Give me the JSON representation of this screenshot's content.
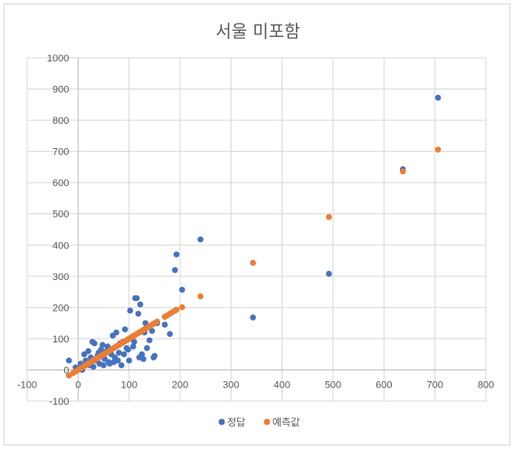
{
  "chart_data": {
    "type": "scatter",
    "title": "서울 미포함",
    "xlabel": "",
    "ylabel": "",
    "xlim": [
      -100,
      800
    ],
    "ylim": [
      -100,
      1000
    ],
    "x_ticks": [
      -100,
      0,
      100,
      200,
      300,
      400,
      500,
      600,
      700,
      800
    ],
    "y_ticks": [
      -100,
      0,
      100,
      200,
      300,
      400,
      500,
      600,
      700,
      800,
      900,
      1000
    ],
    "grid": true,
    "legend_position": "bottom",
    "colors": {
      "정답": "#4472c4",
      "예측값": "#ed7d31",
      "grid": "#d9d9d9"
    },
    "series": [
      {
        "name": "정답",
        "points": [
          [
            -18,
            30
          ],
          [
            -5,
            8
          ],
          [
            0,
            5
          ],
          [
            5,
            20
          ],
          [
            8,
            0
          ],
          [
            12,
            50
          ],
          [
            15,
            30
          ],
          [
            18,
            25
          ],
          [
            20,
            60
          ],
          [
            22,
            15
          ],
          [
            25,
            40
          ],
          [
            28,
            90
          ],
          [
            30,
            10
          ],
          [
            32,
            85
          ],
          [
            35,
            30
          ],
          [
            38,
            45
          ],
          [
            40,
            55
          ],
          [
            42,
            20
          ],
          [
            45,
            65
          ],
          [
            48,
            80
          ],
          [
            50,
            15
          ],
          [
            52,
            35
          ],
          [
            55,
            60
          ],
          [
            58,
            75
          ],
          [
            60,
            25
          ],
          [
            62,
            20
          ],
          [
            65,
            50
          ],
          [
            68,
            110
          ],
          [
            70,
            25
          ],
          [
            72,
            40
          ],
          [
            75,
            120
          ],
          [
            78,
            30
          ],
          [
            80,
            55
          ],
          [
            82,
            85
          ],
          [
            85,
            15
          ],
          [
            88,
            90
          ],
          [
            90,
            50
          ],
          [
            92,
            130
          ],
          [
            95,
            70
          ],
          [
            98,
            65
          ],
          [
            100,
            30
          ],
          [
            102,
            190
          ],
          [
            105,
            100
          ],
          [
            108,
            75
          ],
          [
            110,
            90
          ],
          [
            112,
            230
          ],
          [
            115,
            230
          ],
          [
            118,
            180
          ],
          [
            120,
            40
          ],
          [
            122,
            210
          ],
          [
            125,
            50
          ],
          [
            128,
            35
          ],
          [
            130,
            120
          ],
          [
            132,
            150
          ],
          [
            135,
            70
          ],
          [
            140,
            95
          ],
          [
            145,
            125
          ],
          [
            148,
            40
          ],
          [
            150,
            45
          ],
          [
            155,
            150
          ],
          [
            170,
            145
          ],
          [
            180,
            115
          ],
          [
            190,
            320
          ],
          [
            193,
            370
          ],
          [
            204,
            257
          ],
          [
            240,
            418
          ],
          [
            343,
            168
          ],
          [
            492,
            308
          ],
          [
            637,
            643
          ],
          [
            706,
            872
          ]
        ]
      },
      {
        "name": "예측값",
        "points": [
          [
            -18,
            -18
          ],
          [
            -10,
            -10
          ],
          [
            -5,
            -5
          ],
          [
            0,
            0
          ],
          [
            5,
            5
          ],
          [
            8,
            8
          ],
          [
            12,
            12
          ],
          [
            15,
            15
          ],
          [
            18,
            18
          ],
          [
            20,
            20
          ],
          [
            22,
            22
          ],
          [
            25,
            25
          ],
          [
            28,
            28
          ],
          [
            30,
            30
          ],
          [
            32,
            32
          ],
          [
            35,
            35
          ],
          [
            38,
            38
          ],
          [
            40,
            40
          ],
          [
            42,
            42
          ],
          [
            45,
            45
          ],
          [
            48,
            48
          ],
          [
            50,
            50
          ],
          [
            52,
            52
          ],
          [
            55,
            55
          ],
          [
            58,
            58
          ],
          [
            60,
            60
          ],
          [
            62,
            62
          ],
          [
            65,
            65
          ],
          [
            68,
            68
          ],
          [
            70,
            70
          ],
          [
            72,
            72
          ],
          [
            75,
            75
          ],
          [
            78,
            78
          ],
          [
            80,
            80
          ],
          [
            82,
            82
          ],
          [
            85,
            85
          ],
          [
            88,
            88
          ],
          [
            90,
            90
          ],
          [
            92,
            92
          ],
          [
            95,
            95
          ],
          [
            98,
            98
          ],
          [
            100,
            100
          ],
          [
            102,
            102
          ],
          [
            105,
            105
          ],
          [
            108,
            108
          ],
          [
            110,
            110
          ],
          [
            112,
            112
          ],
          [
            115,
            115
          ],
          [
            118,
            118
          ],
          [
            120,
            120
          ],
          [
            122,
            122
          ],
          [
            125,
            125
          ],
          [
            128,
            128
          ],
          [
            130,
            130
          ],
          [
            132,
            132
          ],
          [
            135,
            135
          ],
          [
            140,
            140
          ],
          [
            145,
            145
          ],
          [
            148,
            148
          ],
          [
            150,
            150
          ],
          [
            155,
            155
          ],
          [
            170,
            170
          ],
          [
            175,
            175
          ],
          [
            180,
            180
          ],
          [
            185,
            185
          ],
          [
            190,
            190
          ],
          [
            193,
            193
          ],
          [
            204,
            201
          ],
          [
            240,
            236
          ],
          [
            343,
            343
          ],
          [
            492,
            490
          ],
          [
            637,
            636
          ],
          [
            706,
            706
          ]
        ]
      }
    ]
  }
}
